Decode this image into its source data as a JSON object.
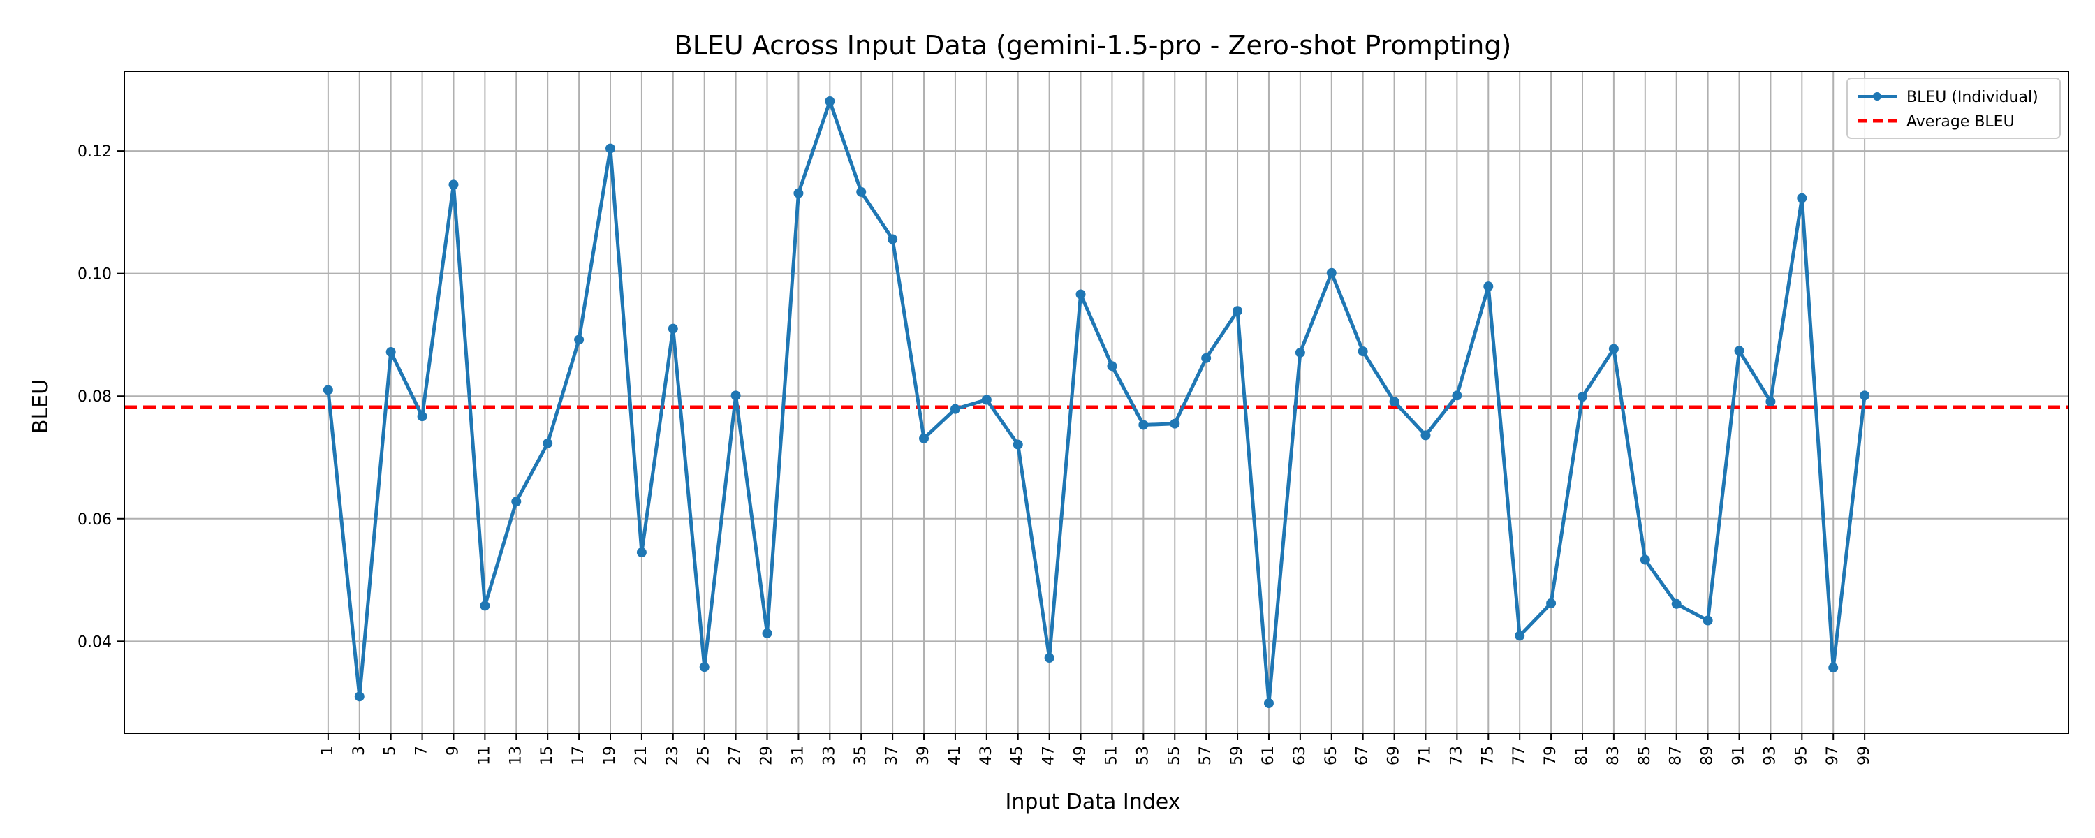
{
  "chart_data": {
    "type": "line",
    "title": "BLEU Across Input Data (gemini-1.5-pro - Zero-shot Prompting)",
    "xlabel": "Input Data Index",
    "ylabel": "BLEU",
    "x": [
      1,
      3,
      5,
      7,
      9,
      11,
      13,
      15,
      17,
      19,
      21,
      23,
      25,
      27,
      29,
      31,
      33,
      35,
      37,
      39,
      41,
      43,
      45,
      47,
      49,
      51,
      53,
      55,
      57,
      59,
      61,
      63,
      65,
      67,
      69,
      71,
      73,
      75,
      77,
      79,
      81,
      83,
      85,
      87,
      89,
      91,
      93,
      95,
      97,
      99
    ],
    "xticks": [
      "1",
      "3",
      "5",
      "7",
      "9",
      "11",
      "13",
      "15",
      "17",
      "19",
      "21",
      "23",
      "25",
      "27",
      "29",
      "31",
      "33",
      "35",
      "37",
      "39",
      "41",
      "43",
      "45",
      "47",
      "49",
      "51",
      "53",
      "55",
      "57",
      "59",
      "61",
      "63",
      "65",
      "67",
      "69",
      "71",
      "73",
      "75",
      "77",
      "79",
      "81",
      "83",
      "85",
      "87",
      "89",
      "91",
      "93",
      "95",
      "97",
      "99"
    ],
    "yticks": [
      "0.04",
      "0.06",
      "0.08",
      "0.10",
      "0.12"
    ],
    "ylim": [
      0.025,
      0.133
    ],
    "grid": true,
    "legend_position": "top-right",
    "series": [
      {
        "name": "BLEU (Individual)",
        "color": "#1f77b4",
        "style": "line-with-markers",
        "values": [
          0.081,
          0.031,
          0.0872,
          0.0767,
          0.1145,
          0.0458,
          0.0628,
          0.0723,
          0.0892,
          0.1204,
          0.0545,
          0.091,
          0.0358,
          0.0801,
          0.0413,
          0.1131,
          0.1281,
          0.1133,
          0.1056,
          0.0731,
          0.0779,
          0.0794,
          0.0721,
          0.0373,
          0.0966,
          0.0849,
          0.0753,
          0.0755,
          0.0862,
          0.0939,
          0.0299,
          0.0871,
          0.1001,
          0.0873,
          0.0791,
          0.0736,
          0.0801,
          0.0979,
          0.0409,
          0.0462,
          0.0799,
          0.0877,
          0.0533,
          0.0461,
          0.0434,
          0.0874,
          0.0791,
          0.1123,
          0.0357,
          0.0801
        ]
      }
    ],
    "average": {
      "name": "Average BLEU",
      "color": "#ff0000",
      "style": "dashed",
      "value": 0.0782
    }
  }
}
